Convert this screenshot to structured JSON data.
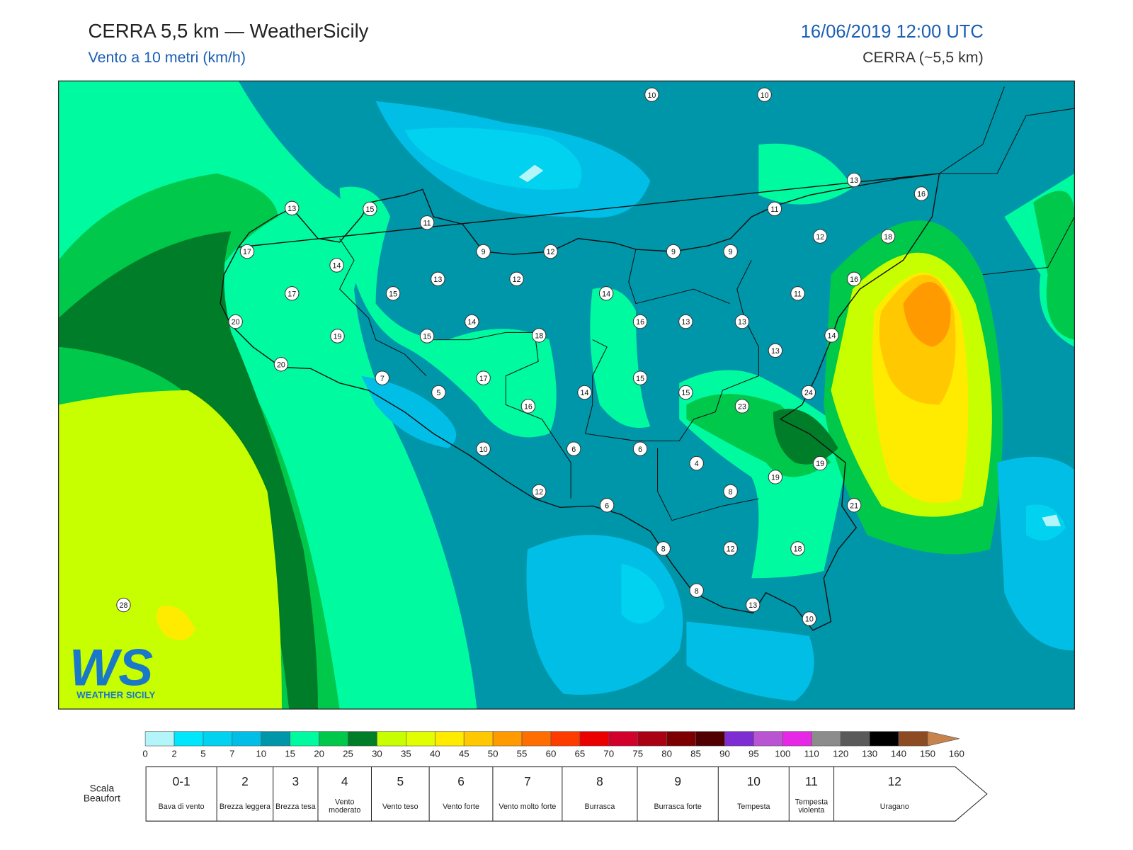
{
  "header": {
    "title": "CERRA 5,5 km — WeatherSicily",
    "subtitle": "Vento a 10 metri (km/h)",
    "datetime": "16/06/2019 12:00 UTC",
    "model": "CERRA (~5,5 km)"
  },
  "map": {
    "station_values": [
      10,
      10,
      13,
      16,
      13,
      15,
      11,
      11,
      17,
      9,
      12,
      9,
      9,
      12,
      18,
      14,
      13,
      12,
      16,
      17,
      15,
      14,
      11,
      20,
      14,
      16,
      13,
      13,
      19,
      15,
      18,
      14,
      13,
      20,
      7,
      17,
      15,
      5,
      14,
      15,
      24,
      16,
      23,
      10,
      6,
      6,
      4,
      19,
      19,
      8,
      12,
      21,
      6,
      8,
      12,
      18,
      8,
      13,
      10,
      28
    ]
  },
  "logo": {
    "mark": "WS",
    "name": "WEATHER SICILY"
  },
  "colorbar": {
    "ticks": [
      0,
      2,
      5,
      7,
      10,
      15,
      20,
      25,
      30,
      35,
      40,
      45,
      50,
      55,
      60,
      65,
      70,
      75,
      80,
      85,
      90,
      95,
      100,
      110,
      120,
      130,
      140,
      150,
      160
    ],
    "colors": [
      "#b4f5fa",
      "#00e6fa",
      "#00d2f0",
      "#00bee6",
      "#0096aa",
      "#00faa0",
      "#00c84b",
      "#007d28",
      "#c8ff00",
      "#e1ff00",
      "#ffeb00",
      "#ffc800",
      "#ff9b00",
      "#ff6e00",
      "#ff3c00",
      "#eb0000",
      "#d2002d",
      "#aa0014",
      "#7d0000",
      "#500000",
      "#7d2dd2",
      "#b955d2",
      "#e628e6",
      "#8c8c8c",
      "#5a5a5a",
      "#000000",
      "#8c4b23",
      "#c8824b"
    ]
  },
  "beaufort": {
    "label": "Scala Beaufort",
    "forces": [
      {
        "force": "0-1",
        "name": "Bava di vento"
      },
      {
        "force": "2",
        "name": "Brezza leggera"
      },
      {
        "force": "3",
        "name": "Brezza tesa"
      },
      {
        "force": "4",
        "name": "Vento moderato"
      },
      {
        "force": "5",
        "name": "Vento teso"
      },
      {
        "force": "6",
        "name": "Vento forte"
      },
      {
        "force": "7",
        "name": "Vento molto forte"
      },
      {
        "force": "8",
        "name": "Burrasca"
      },
      {
        "force": "9",
        "name": "Burrasca forte"
      },
      {
        "force": "10",
        "name": "Tempesta"
      },
      {
        "force": "11",
        "name": "Tempesta violenta"
      },
      {
        "force": "12",
        "name": "Uragano"
      }
    ]
  }
}
